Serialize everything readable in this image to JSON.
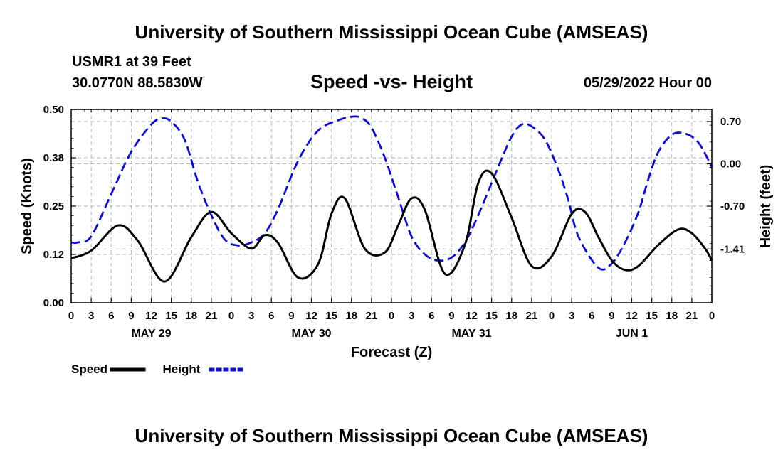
{
  "title": "University of Southern Mississippi Ocean Cube (AMSEAS)",
  "station": "USMR1 at 39 Feet",
  "coordinates": "30.0770N  88.5830W",
  "chart_data": {
    "type": "line",
    "title": "Speed -vs- Height",
    "date_label": "05/29/2022 Hour 00",
    "xlabel": "Forecast (Z)",
    "ylabel_left": "Speed (Knots)",
    "ylabel_right": "Height (feet)",
    "xlim": [
      0,
      96
    ],
    "ylim_left": [
      0,
      0.5
    ],
    "ylim_right": [
      -2.3,
      0.9
    ],
    "x_tick_labels": [
      "0",
      "3",
      "6",
      "9",
      "12",
      "15",
      "18",
      "21",
      "0",
      "3",
      "6",
      "9",
      "12",
      "15",
      "18",
      "21",
      "0",
      "3",
      "6",
      "9",
      "12",
      "15",
      "18",
      "21",
      "0",
      "3",
      "6",
      "9",
      "12",
      "15",
      "18",
      "21",
      "0"
    ],
    "left_tick_labels": [
      "0.00",
      "0.12",
      "0.25",
      "0.38",
      "0.50"
    ],
    "left_tick_values": [
      0,
      0.125,
      0.25,
      0.375,
      0.5
    ],
    "right_tick_labels": [
      "0.70",
      "0.00",
      "-0.70",
      "-1.41"
    ],
    "right_tick_values": [
      0.7,
      0.0,
      -0.7,
      -1.41
    ],
    "day_labels": [
      {
        "label": "MAY 29",
        "hour": 12
      },
      {
        "label": "MAY 30",
        "hour": 36
      },
      {
        "label": "MAY 31",
        "hour": 60
      },
      {
        "label": "JUN 1",
        "hour": 84
      }
    ],
    "series": [
      {
        "name": "Speed",
        "axis": "left",
        "color": "#000000",
        "style": "solid",
        "x": [
          0,
          3,
          7,
          10,
          14,
          18,
          21,
          24,
          27,
          29,
          31,
          34,
          37,
          39,
          41,
          44,
          47,
          49,
          51,
          53,
          56,
          59,
          61,
          63,
          66,
          69,
          72,
          75,
          77,
          79,
          81,
          83,
          85,
          88,
          91,
          93,
          95,
          96
        ],
        "values": [
          0.115,
          0.135,
          0.2,
          0.16,
          0.055,
          0.17,
          0.235,
          0.18,
          0.14,
          0.175,
          0.155,
          0.065,
          0.1,
          0.23,
          0.27,
          0.14,
          0.13,
          0.2,
          0.27,
          0.24,
          0.075,
          0.15,
          0.31,
          0.335,
          0.22,
          0.095,
          0.12,
          0.23,
          0.235,
          0.17,
          0.11,
          0.085,
          0.095,
          0.15,
          0.19,
          0.18,
          0.14,
          0.11
        ]
      },
      {
        "name": "Height",
        "axis": "right",
        "color": "#1010c8",
        "style": "dashed",
        "x": [
          0,
          1,
          3,
          6,
          9,
          12,
          13.5,
          15,
          17,
          19,
          21,
          23,
          25,
          27,
          29,
          31,
          34,
          37,
          40,
          42,
          43.5,
          45,
          47,
          49,
          51,
          53,
          55,
          57,
          59,
          61,
          64,
          66,
          67.5,
          69,
          71,
          73,
          74.5,
          76,
          79,
          81,
          83,
          85,
          86.5,
          88,
          90,
          92,
          94,
          96
        ],
        "values": [
          -1.3,
          -1.3,
          -1.2,
          -0.5,
          0.2,
          0.65,
          0.75,
          0.7,
          0.4,
          -0.3,
          -0.85,
          -1.25,
          -1.35,
          -1.3,
          -1.15,
          -0.75,
          0.05,
          0.55,
          0.72,
          0.78,
          0.76,
          0.6,
          0.1,
          -0.55,
          -1.2,
          -1.5,
          -1.6,
          -1.55,
          -1.3,
          -0.85,
          -0.05,
          0.45,
          0.65,
          0.62,
          0.4,
          -0.1,
          -0.6,
          -1.2,
          -1.72,
          -1.65,
          -1.3,
          -0.8,
          -0.25,
          0.2,
          0.48,
          0.5,
          0.35,
          -0.05
        ]
      }
    ],
    "legend": [
      {
        "label": "Speed",
        "color": "#000000",
        "style": "solid"
      },
      {
        "label": "Height",
        "color": "#1010c8",
        "style": "dashed"
      }
    ],
    "legend_position": "bottom-left",
    "grid": true
  }
}
